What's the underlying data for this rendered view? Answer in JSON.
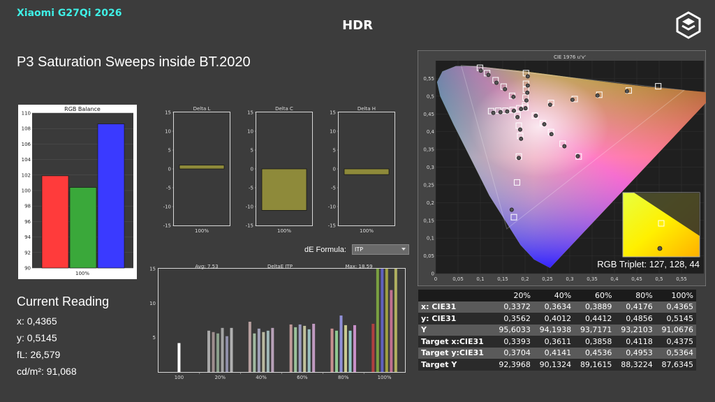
{
  "header": {
    "brand": "Xiaomi G27Qi 2026",
    "mode": "HDR",
    "logo_icon": "cube-logo-icon"
  },
  "page_title": "P3 Saturation Sweeps inside BT.2020",
  "current_reading": {
    "title": "Current Reading",
    "x": "x: 0,4365",
    "y": "y: 0,5145",
    "fl": "fL: 26,579",
    "cd": "cd/m²: 91,068"
  },
  "de_formula": {
    "label": "dE Formula:",
    "value": "ITP"
  },
  "rgb_triplet": "RGB Triplet: 127, 128, 44",
  "measurements": {
    "columns": [
      "",
      "20%",
      "40%",
      "60%",
      "80%",
      "100%"
    ],
    "rows": [
      [
        "x: CIE31",
        "0,3372",
        "0,3634",
        "0,3889",
        "0,4176",
        "0,4365"
      ],
      [
        "y: CIE31",
        "0,3562",
        "0,4012",
        "0,4412",
        "0,4856",
        "0,5145"
      ],
      [
        "Y",
        "95,6033",
        "94,1938",
        "93,7171",
        "93,2103",
        "91,0676"
      ],
      [
        "Target x:CIE31",
        "0,3393",
        "0,3611",
        "0,3858",
        "0,4118",
        "0,4375"
      ],
      [
        "Target y:CIE31",
        "0,3704",
        "0,4141",
        "0,4536",
        "0,4953",
        "0,5364"
      ],
      [
        "Target Y",
        "92,3968",
        "90,1324",
        "89,1615",
        "88,3224",
        "87,6345"
      ]
    ]
  },
  "chart_data": [
    {
      "type": "bar",
      "title": "RGB Balance",
      "categories": [
        "100%"
      ],
      "series": [
        {
          "name": "R",
          "values": [
            101.9
          ],
          "color": "#ff3b3b"
        },
        {
          "name": "G",
          "values": [
            100.4
          ],
          "color": "#3aa83a"
        },
        {
          "name": "B",
          "values": [
            108.6
          ],
          "color": "#3a3aff"
        }
      ],
      "ylim": [
        90,
        110
      ],
      "yticks": [
        "90",
        "92",
        "94",
        "96",
        "98",
        "100",
        "102",
        "104",
        "106",
        "108",
        "110"
      ]
    },
    {
      "type": "bar",
      "title": "Delta L",
      "categories": [
        "100%"
      ],
      "values": [
        1.0
      ],
      "ylim": [
        -15,
        15
      ],
      "yticks": [
        "15",
        "10",
        "5",
        "0",
        "-5",
        "-10",
        "-15"
      ]
    },
    {
      "type": "bar",
      "title": "Delta C",
      "categories": [
        "100%"
      ],
      "values": [
        -11.0
      ],
      "ylim": [
        -15,
        15
      ],
      "yticks": [
        "15",
        "10",
        "5",
        "0",
        "-5",
        "-10",
        "-15"
      ]
    },
    {
      "type": "bar",
      "title": "Delta H",
      "categories": [
        "100%"
      ],
      "values": [
        -1.5
      ],
      "ylim": [
        -15,
        15
      ],
      "yticks": [
        "15",
        "10",
        "5",
        "0",
        "-5",
        "-10",
        "-15"
      ]
    },
    {
      "type": "bar",
      "title": "DeltaE ITP",
      "avg_label": "Avg: 7,53",
      "max_label": "Max: 18,59",
      "categories": [
        "100",
        "20%",
        "40%",
        "60%",
        "80%",
        "100%"
      ],
      "groups": [
        [
          4.2
        ],
        [
          6.0,
          5.8,
          5.6,
          6.4,
          5.2,
          6.4
        ],
        [
          7.3,
          5.6,
          6.3,
          5.8,
          6.0,
          6.4
        ],
        [
          6.9,
          6.5,
          6.9,
          6.7,
          6.2,
          7.0
        ],
        [
          6.3,
          6.0,
          8.2,
          6.8,
          6.0,
          6.8
        ],
        [
          7.0,
          18.6,
          16.5,
          15.6,
          11.9,
          15.4
        ]
      ],
      "ylim": [
        0,
        15
      ],
      "yticks": [
        "15",
        "10",
        "5"
      ]
    },
    {
      "type": "scatter",
      "title": "CIE 1976 u'v'",
      "xticks": [
        "0",
        "0,05",
        "0,1",
        "0,15",
        "0,2",
        "0,25",
        "0,3",
        "0,35",
        "0,4",
        "0,45",
        "0,5",
        "0,55"
      ],
      "yticks": [
        "0,55",
        "0,5",
        "0,45",
        "0,4",
        "0,35",
        "0,3",
        "0,25",
        "0,2",
        "0,15",
        "0,1",
        "0,05",
        "0"
      ],
      "xlim": [
        0,
        0.6
      ],
      "ylim": [
        0,
        0.6
      ],
      "targets": [
        [
          0.099,
          0.58
        ],
        [
          0.115,
          0.565
        ],
        [
          0.134,
          0.545
        ],
        [
          0.152,
          0.527
        ],
        [
          0.171,
          0.501
        ],
        [
          0.202,
          0.565
        ],
        [
          0.202,
          0.535
        ],
        [
          0.202,
          0.518
        ],
        [
          0.201,
          0.496
        ],
        [
          0.2,
          0.474
        ],
        [
          0.258,
          0.481
        ],
        [
          0.311,
          0.492
        ],
        [
          0.366,
          0.504
        ],
        [
          0.432,
          0.516
        ],
        [
          0.498,
          0.528
        ],
        [
          0.187,
          0.466
        ],
        [
          0.172,
          0.461
        ],
        [
          0.156,
          0.459
        ],
        [
          0.14,
          0.459
        ],
        [
          0.124,
          0.458
        ],
        [
          0.183,
          0.447
        ],
        [
          0.186,
          0.417
        ],
        [
          0.189,
          0.388
        ],
        [
          0.186,
          0.33
        ],
        [
          0.182,
          0.257
        ],
        [
          0.175,
          0.159
        ],
        [
          0.201,
          0.468
        ],
        [
          0.222,
          0.445
        ],
        [
          0.24,
          0.424
        ],
        [
          0.258,
          0.399
        ],
        [
          0.284,
          0.366
        ],
        [
          0.32,
          0.33
        ]
      ],
      "measured": [
        [
          0.101,
          0.572
        ],
        [
          0.118,
          0.56
        ],
        [
          0.136,
          0.538
        ],
        [
          0.155,
          0.52
        ],
        [
          0.174,
          0.498
        ],
        [
          0.206,
          0.556
        ],
        [
          0.206,
          0.53
        ],
        [
          0.205,
          0.51
        ],
        [
          0.203,
          0.488
        ],
        [
          0.201,
          0.466
        ],
        [
          0.256,
          0.476
        ],
        [
          0.306,
          0.49
        ],
        [
          0.362,
          0.502
        ],
        [
          0.428,
          0.514
        ],
        [
          0.191,
          0.464
        ],
        [
          0.175,
          0.459
        ],
        [
          0.16,
          0.457
        ],
        [
          0.145,
          0.455
        ],
        [
          0.129,
          0.453
        ],
        [
          0.183,
          0.441
        ],
        [
          0.189,
          0.406
        ],
        [
          0.191,
          0.38
        ],
        [
          0.186,
          0.326
        ],
        [
          0.17,
          0.18
        ],
        [
          0.224,
          0.445
        ],
        [
          0.243,
          0.421
        ],
        [
          0.259,
          0.393
        ],
        [
          0.288,
          0.359
        ],
        [
          0.318,
          0.331
        ]
      ]
    }
  ]
}
